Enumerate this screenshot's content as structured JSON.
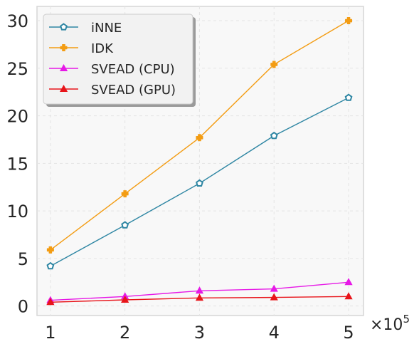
{
  "chart_data": {
    "type": "line",
    "x": [
      1,
      2,
      3,
      4,
      5
    ],
    "x_multiplier": "×10^5",
    "x_multiplier_base": "×10",
    "x_multiplier_exp": "5",
    "xticks": [
      "1",
      "2",
      "3",
      "4",
      "5"
    ],
    "yticks": [
      "0",
      "5",
      "10",
      "15",
      "20",
      "25",
      "30"
    ],
    "xlim": [
      0.82,
      5.2
    ],
    "ylim": [
      -1.0,
      31.5
    ],
    "grid": true,
    "legend_position": "top-left",
    "series": [
      {
        "name": "iNNE",
        "color": "#2e86a3",
        "marker": "pentagon",
        "values": [
          4.2,
          8.5,
          12.9,
          17.9,
          21.9
        ]
      },
      {
        "name": "IDK",
        "color": "#f39c12",
        "marker": "plus-filled",
        "values": [
          5.9,
          11.8,
          17.7,
          25.4,
          30.0
        ]
      },
      {
        "name": "SVEAD (CPU)",
        "color": "#e619e6",
        "marker": "triangle",
        "values": [
          0.6,
          1.0,
          1.6,
          1.8,
          2.5
        ]
      },
      {
        "name": "SVEAD (GPU)",
        "color": "#e8141a",
        "marker": "triangle",
        "values": [
          0.4,
          0.65,
          0.85,
          0.9,
          1.0
        ]
      }
    ]
  }
}
